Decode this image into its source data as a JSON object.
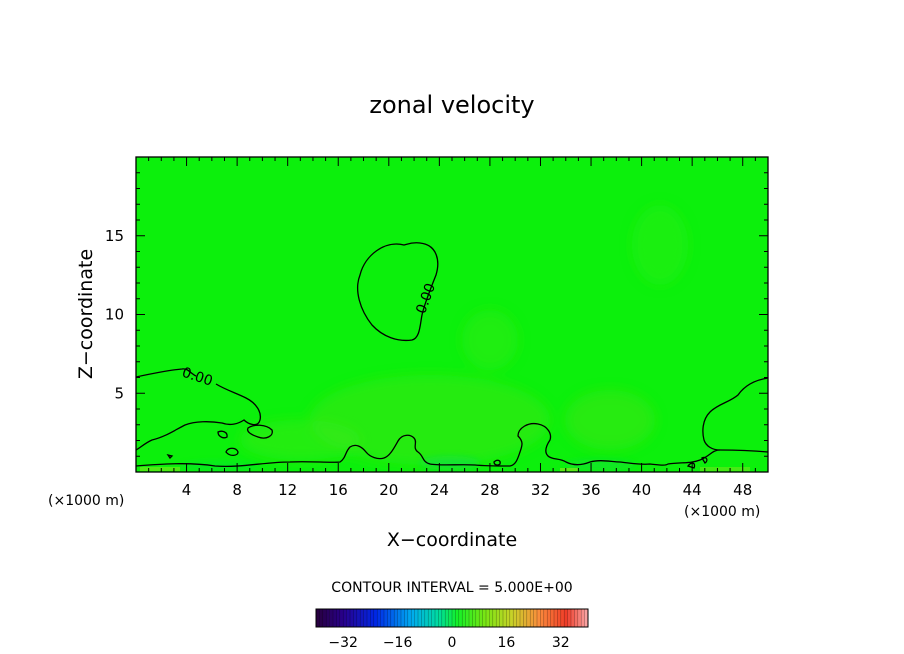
{
  "chart_data": {
    "type": "heatmap",
    "title": "zonal velocity",
    "xlabel": "X−coordinate",
    "ylabel": "Z−coordinate",
    "x_unit_left": "(×1000 m)",
    "x_unit_right": "(×1000 m)",
    "xlim": [
      0,
      50
    ],
    "ylim": [
      0,
      20
    ],
    "xticks": [
      4,
      8,
      12,
      16,
      20,
      24,
      28,
      32,
      36,
      40,
      44,
      48
    ],
    "yticks": [
      5,
      10,
      15
    ],
    "contour_interval_text": "CONTOUR INTERVAL = 5.000E+00",
    "contour_labels": [
      "0.00",
      "0.00"
    ],
    "field_value_range": [
      -2,
      3
    ],
    "colorbar": {
      "range": [
        -40,
        40
      ],
      "ticks": [
        -32,
        -16,
        0,
        16,
        32
      ],
      "tick_labels": [
        "−32",
        "−16",
        "0",
        "16",
        "32"
      ]
    },
    "colors": {
      "background_field": "#0cf00c",
      "contour_line": "#000000"
    }
  }
}
